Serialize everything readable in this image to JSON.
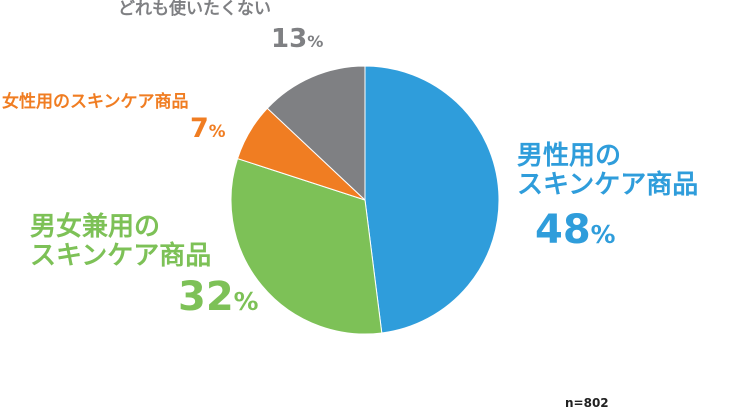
{
  "chart_data": {
    "type": "pie",
    "slices": [
      {
        "label_lines": [
          "男性用の",
          "スキンケア商品"
        ],
        "value": 48,
        "pct_text": "48",
        "color": "#2f9ddb"
      },
      {
        "label_lines": [
          "男女兼用の",
          "スキンケア商品"
        ],
        "value": 32,
        "pct_text": "32",
        "color": "#7dc157"
      },
      {
        "label_lines": [
          "女性用のスキンケア商品"
        ],
        "value": 7,
        "pct_text": "7",
        "color": "#f07d22"
      },
      {
        "label_lines": [
          "どれも使いたくない"
        ],
        "value": 13,
        "pct_text": "13",
        "color": "#7f8083"
      }
    ],
    "percent_unit": "%",
    "start_angle_deg": 0,
    "direction": "clockwise",
    "legend": "none"
  },
  "note": "n=802"
}
